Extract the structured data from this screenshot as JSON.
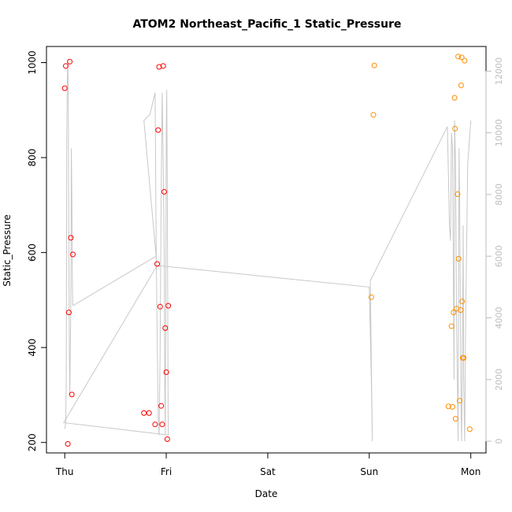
{
  "chart_data": {
    "type": "scatter",
    "title": "ATOM2 Northeast_Pacific_1 Static_Pressure",
    "xlabel": "Date",
    "ylabel": "Static_Pressure",
    "x_ticks": [
      "Thu",
      "Fri",
      "Sat",
      "Sun",
      "Mon"
    ],
    "x_lim_days": [
      -0.18,
      4.15
    ],
    "y_lim": [
      178,
      1034
    ],
    "y_ticks": [
      200,
      400,
      600,
      800,
      1000
    ],
    "y2_lim": [
      -380,
      12800
    ],
    "y2_ticks": [
      0,
      2000,
      4000,
      6000,
      8000,
      10000,
      12000
    ],
    "series": [
      {
        "color": "#ff0000",
        "points": [
          [
            0.0,
            946
          ],
          [
            0.01,
            993
          ],
          [
            0.03,
            197
          ],
          [
            0.04,
            474
          ],
          [
            0.05,
            1002
          ],
          [
            0.06,
            631
          ],
          [
            0.07,
            301
          ],
          [
            0.08,
            596
          ],
          [
            0.78,
            262
          ],
          [
            0.83,
            262
          ],
          [
            0.89,
            238
          ],
          [
            0.91,
            576
          ],
          [
            0.92,
            858
          ],
          [
            0.93,
            991
          ],
          [
            0.94,
            486
          ],
          [
            0.95,
            277
          ],
          [
            0.96,
            238
          ],
          [
            0.97,
            993
          ],
          [
            0.98,
            728
          ],
          [
            0.99,
            441
          ],
          [
            1.0,
            348
          ],
          [
            1.01,
            207
          ],
          [
            1.02,
            488
          ]
        ]
      },
      {
        "color": "#ff8c00",
        "points": [
          [
            3.02,
            506
          ],
          [
            3.04,
            890
          ],
          [
            3.05,
            994
          ],
          [
            3.78,
            276
          ],
          [
            3.81,
            445
          ],
          [
            3.82,
            275
          ],
          [
            3.83,
            474
          ],
          [
            3.84,
            926
          ],
          [
            3.845,
            861
          ],
          [
            3.85,
            250
          ],
          [
            3.86,
            482
          ],
          [
            3.87,
            723
          ],
          [
            3.875,
            1013
          ],
          [
            3.88,
            587
          ],
          [
            3.89,
            288
          ],
          [
            3.9,
            479
          ],
          [
            3.905,
            952
          ],
          [
            3.91,
            1011
          ],
          [
            3.915,
            497
          ],
          [
            3.92,
            378
          ],
          [
            3.93,
            378
          ],
          [
            3.94,
            1004
          ],
          [
            3.99,
            228
          ]
        ]
      }
    ],
    "line_series": [
      {
        "color": "#c8c8c8",
        "axis": "right",
        "points": [
          [
            0.0,
            400
          ],
          [
            0.01,
            600
          ],
          [
            0.015,
            2000
          ],
          [
            0.02,
            10000
          ],
          [
            0.025,
            11600
          ],
          [
            0.03,
            12400
          ],
          [
            0.035,
            11000
          ],
          [
            0.04,
            6000
          ],
          [
            0.045,
            3000
          ],
          [
            0.05,
            1500
          ],
          [
            0.06,
            4300
          ],
          [
            0.065,
            9500
          ],
          [
            0.07,
            8000
          ],
          [
            0.075,
            5000
          ],
          [
            0.08,
            4400
          ],
          [
            0.082,
            4400
          ],
          [
            0.9,
            6000
          ],
          [
            0.78,
            10400
          ],
          [
            0.84,
            10600
          ],
          [
            0.89,
            11300
          ],
          [
            0.9,
            6500
          ],
          [
            0.91,
            3500
          ],
          [
            0.92,
            800
          ],
          [
            0.93,
            200
          ],
          [
            0.94,
            3000
          ],
          [
            0.95,
            8000
          ],
          [
            0.96,
            11300
          ],
          [
            0.97,
            9000
          ],
          [
            0.98,
            6000
          ],
          [
            0.985,
            2000
          ],
          [
            0.99,
            200
          ],
          [
            0.995,
            4000
          ],
          [
            1.0,
            10000
          ],
          [
            1.005,
            11400
          ],
          [
            1.01,
            8000
          ],
          [
            1.015,
            4000
          ],
          [
            1.018,
            1000
          ],
          [
            1.02,
            200
          ],
          [
            -0.01,
            600
          ],
          [
            0.91,
            5700
          ],
          [
            3.0,
            5000
          ],
          [
            3.02,
            2000
          ],
          [
            3.03,
            0
          ],
          [
            3.01,
            5200
          ],
          [
            3.77,
            10200
          ],
          [
            3.79,
            7000
          ],
          [
            3.8,
            6500
          ],
          [
            3.81,
            10000
          ],
          [
            3.82,
            9500
          ],
          [
            3.83,
            4500
          ],
          [
            3.835,
            2000
          ],
          [
            3.84,
            10400
          ],
          [
            3.85,
            9000
          ],
          [
            3.86,
            4000
          ],
          [
            3.87,
            1500
          ],
          [
            3.875,
            0
          ],
          [
            3.88,
            5000
          ],
          [
            3.885,
            9500
          ],
          [
            3.89,
            8000
          ],
          [
            3.9,
            3000
          ],
          [
            3.905,
            1000
          ],
          [
            3.91,
            0
          ],
          [
            3.92,
            4000
          ],
          [
            3.925,
            7000
          ],
          [
            3.93,
            2000
          ],
          [
            3.94,
            0
          ],
          [
            3.95,
            4000
          ],
          [
            3.97,
            9000
          ],
          [
            4.0,
            10400
          ]
        ]
      }
    ]
  }
}
